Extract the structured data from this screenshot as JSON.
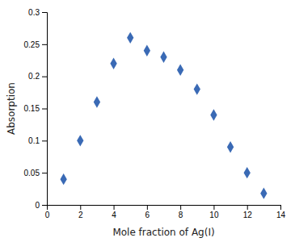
{
  "chart_data": {
    "type": "scatter",
    "x": [
      1,
      2,
      3,
      4,
      5,
      6,
      7,
      8,
      9,
      10,
      11,
      12,
      13
    ],
    "values": [
      0.04,
      0.1,
      0.16,
      0.22,
      0.26,
      0.24,
      0.23,
      0.21,
      0.18,
      0.14,
      0.09,
      0.05,
      0.018
    ],
    "color": "#3a6ab5",
    "marker": "diamond",
    "xlabel": "Mole fraction of Ag(I)",
    "ylabel": "Absorption",
    "xlim": [
      0,
      14
    ],
    "ylim": [
      0,
      0.3
    ],
    "xticks": [
      0,
      2,
      4,
      6,
      8,
      10,
      12,
      14
    ],
    "yticks": [
      0,
      0.05,
      0.1,
      0.15,
      0.2,
      0.25,
      0.3
    ],
    "grid": false
  }
}
